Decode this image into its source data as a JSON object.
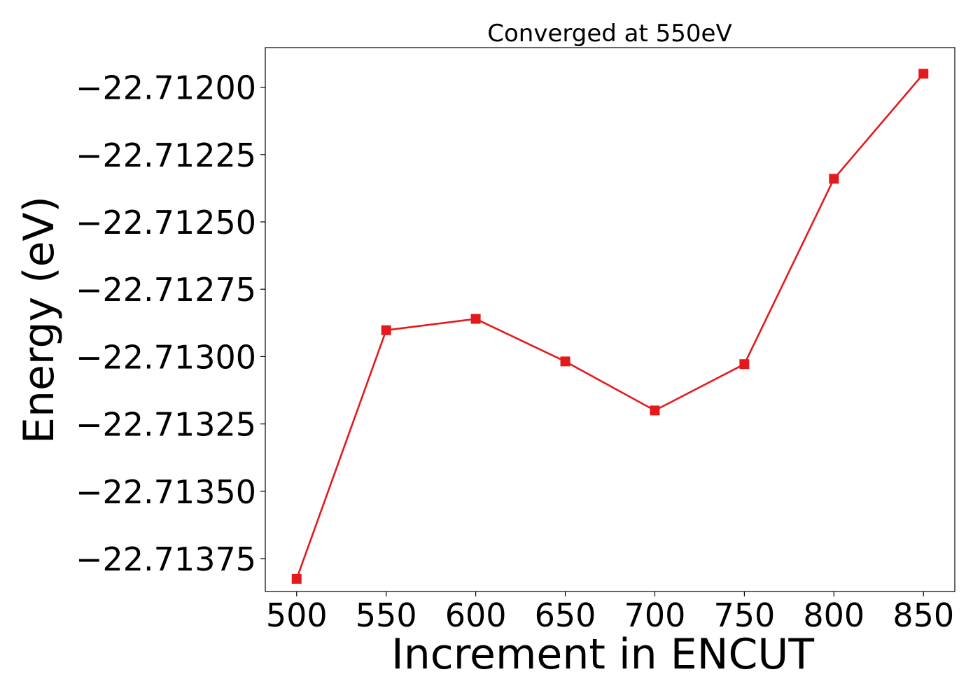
{
  "chart_data": {
    "type": "line",
    "title": "Converged at 550eV",
    "xlabel": "Increment in ENCUT",
    "ylabel": "Energy (eV)",
    "x": [
      500,
      550,
      600,
      650,
      700,
      750,
      800,
      850
    ],
    "series": [
      {
        "values": [
          -22.713825,
          -22.712902,
          -22.71286,
          -22.713018,
          -22.7132,
          -22.713028,
          -22.71234,
          -22.71195
        ],
        "color": "#e31a1c",
        "marker": "square"
      }
    ],
    "xticks": [
      500,
      550,
      600,
      650,
      700,
      750,
      800,
      850
    ],
    "xtick_labels": [
      "500",
      "550",
      "600",
      "650",
      "700",
      "750",
      "800",
      "850"
    ],
    "yticks": [
      -22.712,
      -22.71225,
      -22.7125,
      -22.71275,
      -22.713,
      -22.71325,
      -22.7135,
      -22.71375
    ],
    "ytick_labels": [
      "−22.71200",
      "−22.71225",
      "−22.71250",
      "−22.71275",
      "−22.71300",
      "−22.71325",
      "−22.71350",
      "−22.71375"
    ],
    "xlim": [
      482.5,
      867.5
    ],
    "ylim": [
      -22.713872,
      -22.711853
    ],
    "grid": false,
    "legend": false
  }
}
